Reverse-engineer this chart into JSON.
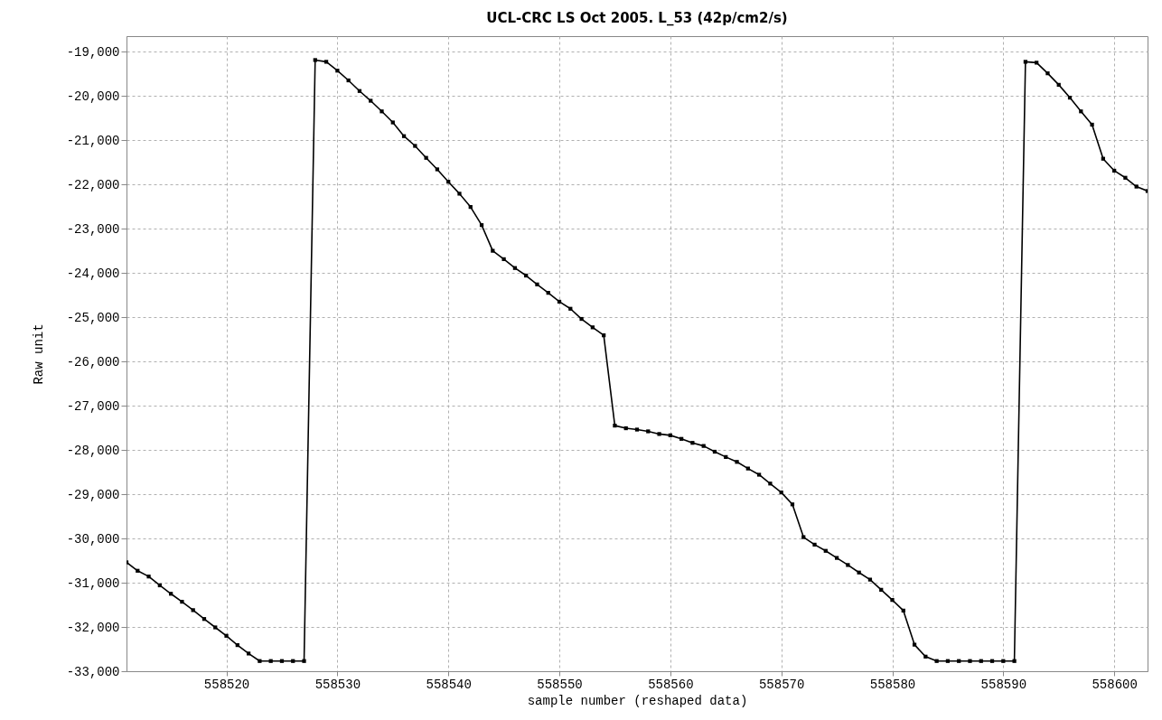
{
  "chart_data": {
    "type": "line",
    "title": "UCL-CRC LS Oct 2005. L_53 (42p/cm2/s)",
    "xlabel": "sample number (reshaped data)",
    "ylabel": "Raw unit",
    "x": [
      558511,
      558512,
      558513,
      558514,
      558515,
      558516,
      558517,
      558518,
      558519,
      558520,
      558521,
      558522,
      558523,
      558524,
      558525,
      558526,
      558527,
      558528,
      558529,
      558530,
      558531,
      558532,
      558533,
      558534,
      558535,
      558536,
      558537,
      558538,
      558539,
      558540,
      558541,
      558542,
      558543,
      558544,
      558545,
      558546,
      558547,
      558548,
      558549,
      558550,
      558551,
      558552,
      558553,
      558554,
      558555,
      558556,
      558557,
      558558,
      558559,
      558560,
      558561,
      558562,
      558563,
      558564,
      558565,
      558566,
      558567,
      558568,
      558569,
      558570,
      558571,
      558572,
      558573,
      558574,
      558575,
      558576,
      558577,
      558578,
      558579,
      558580,
      558581,
      558582,
      558583,
      558584,
      558585,
      558586,
      558587,
      558588,
      558589,
      558590,
      558591,
      558592,
      558593,
      558594,
      558595,
      558596,
      558597,
      558598,
      558599,
      558600,
      558601,
      558602,
      558603
    ],
    "series": [
      {
        "color": "#000000",
        "values": [
          -30540,
          -30730,
          -30860,
          -31060,
          -31250,
          -31430,
          -31620,
          -31820,
          -32010,
          -32200,
          -32410,
          -32600,
          -32770,
          -32770,
          -32770,
          -32770,
          -32770,
          -19190,
          -19230,
          -19430,
          -19650,
          -19890,
          -20110,
          -20350,
          -20600,
          -20910,
          -21130,
          -21400,
          -21660,
          -21940,
          -22210,
          -22510,
          -22920,
          -23500,
          -23690,
          -23890,
          -24060,
          -24260,
          -24450,
          -24650,
          -24810,
          -25040,
          -25230,
          -25410,
          -27450,
          -27510,
          -27540,
          -27580,
          -27640,
          -27670,
          -27750,
          -27840,
          -27910,
          -28040,
          -28160,
          -28270,
          -28420,
          -28560,
          -28760,
          -28960,
          -29230,
          -29970,
          -30140,
          -30280,
          -30440,
          -30600,
          -30770,
          -30930,
          -31160,
          -31390,
          -31630,
          -32400,
          -32670,
          -32770,
          -32770,
          -32770,
          -32770,
          -32770,
          -32770,
          -32770,
          -32770,
          -19230,
          -19250,
          -19490,
          -19750,
          -20040,
          -20350,
          -20650,
          -21420,
          -21690,
          -21850,
          -22050,
          -22150
        ]
      }
    ],
    "xlim": [
      558511,
      558603
    ],
    "xticks": [
      558520,
      558530,
      558540,
      558550,
      558560,
      558570,
      558580,
      558590,
      558600
    ],
    "ylim": [
      -33000,
      -18650
    ],
    "yticks": [
      {
        "value": -33000,
        "label": "-33,000"
      },
      {
        "value": -32000,
        "label": "-32,000"
      },
      {
        "value": -31000,
        "label": "-31,000"
      },
      {
        "value": -30000,
        "label": "-30,000"
      },
      {
        "value": -29000,
        "label": "-29,000"
      },
      {
        "value": -28000,
        "label": "-28,000"
      },
      {
        "value": -27000,
        "label": "-27,000"
      },
      {
        "value": -26000,
        "label": "-26,000"
      },
      {
        "value": -25000,
        "label": "-25,000"
      },
      {
        "value": -24000,
        "label": "-24,000"
      },
      {
        "value": -23000,
        "label": "-23,000"
      },
      {
        "value": -22000,
        "label": "-22,000"
      },
      {
        "value": -21000,
        "label": "-21,000"
      },
      {
        "value": -20000,
        "label": "-20,000"
      },
      {
        "value": -19000,
        "label": "-19,000"
      }
    ],
    "grid": true,
    "marker": "square",
    "line_style": "solid"
  }
}
